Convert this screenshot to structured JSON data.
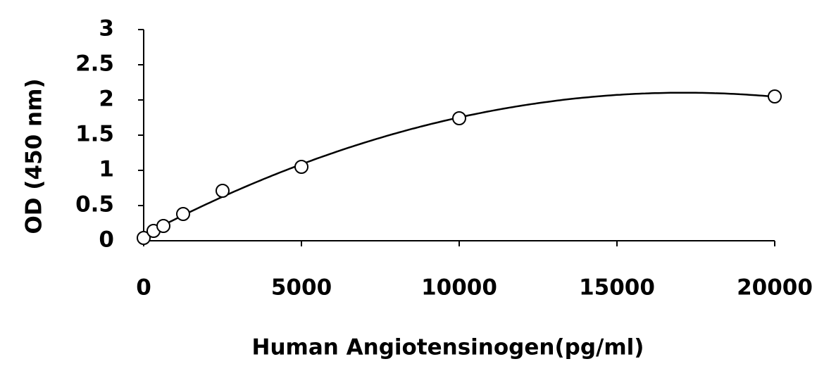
{
  "chart_data": {
    "type": "scatter",
    "xlabel": "Human Angiotensinogen(pg/ml)",
    "ylabel": "OD (450 nm)",
    "x": [
      0,
      312.5,
      625,
      1250,
      2500,
      5000,
      10000,
      20000
    ],
    "values": [
      0.04,
      0.14,
      0.21,
      0.38,
      0.71,
      1.05,
      1.74,
      2.05
    ],
    "color": "#000000",
    "trendline": "polynomial",
    "xlim": [
      0,
      20000
    ],
    "xticks": [
      0,
      5000,
      10000,
      15000,
      20000
    ],
    "ylim": [
      0,
      3
    ],
    "yticks": [
      0,
      0.5,
      1,
      1.5,
      2,
      2.5,
      3
    ]
  }
}
